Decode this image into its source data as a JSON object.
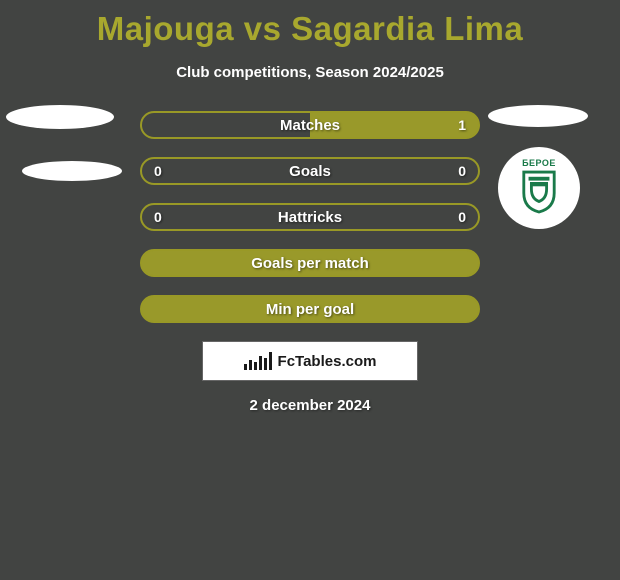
{
  "header": {
    "title": "Majouga vs Sagardia Lima",
    "subtitle": "Club competitions, Season 2024/2025",
    "title_color": "#a8a82e",
    "title_fontsize": 33,
    "subtitle_color": "#ffffff",
    "subtitle_fontsize": 15
  },
  "background_color": "#424442",
  "stats": {
    "row_border_color": "#999926",
    "row_fill_color": "#99992a",
    "label_color": "#ffffff",
    "value_color": "#ffffff",
    "rows": [
      {
        "label": "Matches",
        "left": "",
        "right": "1",
        "fill": "right"
      },
      {
        "label": "Goals",
        "left": "0",
        "right": "0",
        "fill": "none"
      },
      {
        "label": "Hattricks",
        "left": "0",
        "right": "0",
        "fill": "none"
      },
      {
        "label": "Goals per match",
        "left": "",
        "right": "",
        "fill": "full"
      },
      {
        "label": "Min per goal",
        "left": "",
        "right": "",
        "fill": "full"
      }
    ]
  },
  "left_badges": {
    "ellipse_color": "#ffffff"
  },
  "right_badge": {
    "ellipse_color": "#ffffff",
    "club_text": "БЕРОЕ",
    "club_text_color": "#1a7a4a",
    "shield_stroke": "#1a7a4a"
  },
  "footer": {
    "logo_text": "FcTables.com",
    "logo_bg": "#ffffff",
    "logo_text_color": "#1a1a1a",
    "date": "2 december 2024",
    "date_color": "#ffffff"
  }
}
